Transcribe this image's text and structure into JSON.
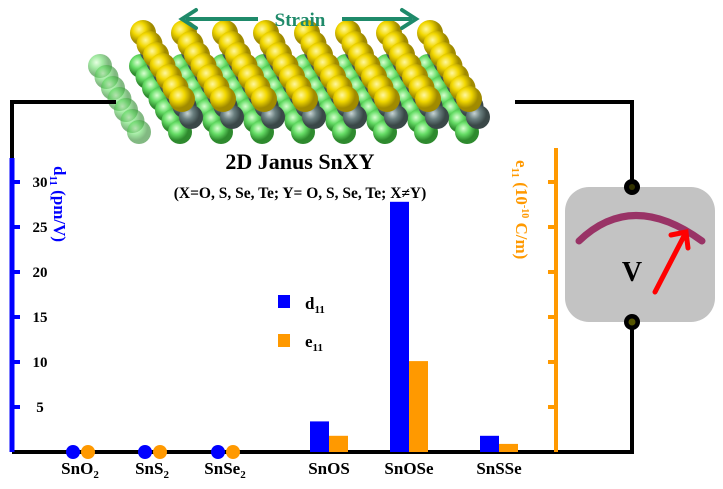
{
  "strain_label": "Strain",
  "title": "2D Janus SnXY",
  "subtitle": "(X=O, S, Se, Te; Y= O, S, Se, Te; X≠Y)",
  "voltmeter_label": "V",
  "colors": {
    "d11": "#0000ff",
    "e11": "#ff9900",
    "strain": "#1f8a6a",
    "wire": "#000000",
    "meter": "#c3c3c3",
    "arc": "#993366",
    "needle": "#ff0000"
  },
  "chart_data": {
    "type": "bar",
    "categories": [
      "SnO2",
      "SnS2",
      "SnSe2",
      "SnOS",
      "SnOSe",
      "SnSSe"
    ],
    "category_labels": [
      [
        "SnO",
        "2"
      ],
      [
        "SnS",
        "2"
      ],
      [
        "SnSe",
        "2"
      ],
      [
        "SnOS",
        ""
      ],
      [
        "SnOSe",
        ""
      ],
      [
        "SnSSe",
        ""
      ]
    ],
    "series": [
      {
        "name": "d11",
        "label_main": "d",
        "label_sub": "11",
        "values": [
          0,
          0,
          0,
          3.4,
          27.8,
          1.8
        ]
      },
      {
        "name": "e11",
        "label_main": "e",
        "label_sub": "11",
        "values": [
          0,
          0,
          0,
          1.8,
          10.1,
          0.9
        ]
      }
    ],
    "ylabel_left": {
      "main": "d",
      "sub": "11",
      "unit": " (pm/V)"
    },
    "ylabel_right": {
      "main": "e",
      "sub": "11",
      "unit_pre": " (10",
      "sup": "-10",
      "unit_post": " C/m)"
    },
    "yticks_left": [
      5,
      10,
      15,
      20,
      25,
      30
    ],
    "ylim": [
      0,
      32.5
    ],
    "legend": "center",
    "grid": false
  }
}
